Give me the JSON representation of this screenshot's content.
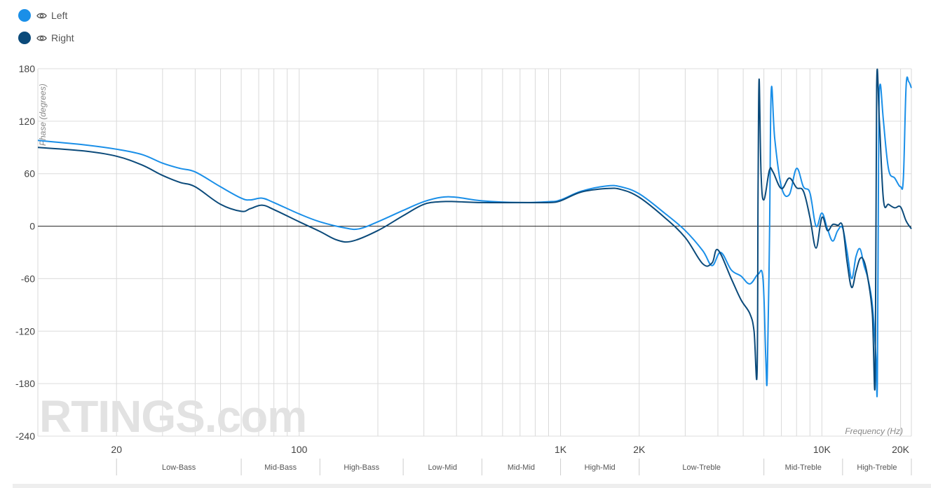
{
  "legend": {
    "items": [
      {
        "label": "Left",
        "color": "#1a8fe8",
        "icon": "eye-icon"
      },
      {
        "label": "Right",
        "color": "#0b4a7a",
        "icon": "eye-icon"
      }
    ]
  },
  "watermark": "RTINGS.com",
  "chart_data": {
    "type": "line",
    "ylabel": "Phase (degrees)",
    "xlabel": "Frequency (Hz)",
    "xscale": "log",
    "xlim": [
      10,
      22000
    ],
    "ylim": [
      -240,
      180
    ],
    "yticks": [
      180,
      120,
      60,
      0,
      -60,
      -120,
      -180,
      -240
    ],
    "xticks": [
      {
        "value": 20,
        "label": "20"
      },
      {
        "value": 100,
        "label": "100"
      },
      {
        "value": 1000,
        "label": "1K"
      },
      {
        "value": 2000,
        "label": "2K"
      },
      {
        "value": 10000,
        "label": "10K"
      },
      {
        "value": 20000,
        "label": "20K"
      }
    ],
    "grid": true,
    "bands": [
      {
        "label": "Low-Bass",
        "from": 20,
        "to": 60
      },
      {
        "label": "Mid-Bass",
        "from": 60,
        "to": 120
      },
      {
        "label": "High-Bass",
        "from": 120,
        "to": 250
      },
      {
        "label": "Low-Mid",
        "from": 250,
        "to": 500
      },
      {
        "label": "Mid-Mid",
        "from": 500,
        "to": 1000
      },
      {
        "label": "High-Mid",
        "from": 1000,
        "to": 2000
      },
      {
        "label": "Low-Treble",
        "from": 2000,
        "to": 6000
      },
      {
        "label": "Mid-Treble",
        "from": 6000,
        "to": 12000
      },
      {
        "label": "High-Treble",
        "from": 12000,
        "to": 22000
      }
    ],
    "series": [
      {
        "name": "Left",
        "color": "#1a8fe8",
        "points": [
          [
            10,
            98
          ],
          [
            15,
            93
          ],
          [
            20,
            88
          ],
          [
            25,
            82
          ],
          [
            30,
            72
          ],
          [
            35,
            66
          ],
          [
            40,
            62
          ],
          [
            50,
            45
          ],
          [
            60,
            32
          ],
          [
            65,
            30
          ],
          [
            72,
            32
          ],
          [
            80,
            27
          ],
          [
            100,
            14
          ],
          [
            120,
            5
          ],
          [
            150,
            -2
          ],
          [
            170,
            -3
          ],
          [
            200,
            5
          ],
          [
            250,
            18
          ],
          [
            300,
            28
          ],
          [
            350,
            33
          ],
          [
            400,
            33
          ],
          [
            500,
            29
          ],
          [
            700,
            27
          ],
          [
            900,
            28
          ],
          [
            1000,
            30
          ],
          [
            1200,
            40
          ],
          [
            1500,
            46
          ],
          [
            1700,
            45
          ],
          [
            2000,
            37
          ],
          [
            2500,
            15
          ],
          [
            3000,
            -5
          ],
          [
            3500,
            -28
          ],
          [
            3800,
            -45
          ],
          [
            4100,
            -30
          ],
          [
            4500,
            -50
          ],
          [
            4900,
            -57
          ],
          [
            5300,
            -66
          ],
          [
            5700,
            -55
          ],
          [
            5950,
            -60
          ],
          [
            6100,
            -150
          ],
          [
            6180,
            -173
          ],
          [
            6300,
            -20
          ],
          [
            6400,
            155
          ],
          [
            6600,
            100
          ],
          [
            7000,
            45
          ],
          [
            7500,
            36
          ],
          [
            8000,
            66
          ],
          [
            8500,
            45
          ],
          [
            9000,
            38
          ],
          [
            9500,
            0
          ],
          [
            10000,
            15
          ],
          [
            10500,
            -3
          ],
          [
            11000,
            -17
          ],
          [
            11500,
            -5
          ],
          [
            12000,
            -2
          ],
          [
            12500,
            -30
          ],
          [
            13000,
            -60
          ],
          [
            13500,
            -35
          ],
          [
            14000,
            -26
          ],
          [
            14500,
            -45
          ],
          [
            15000,
            -60
          ],
          [
            15600,
            -90
          ],
          [
            16100,
            -150
          ],
          [
            16300,
            -178
          ],
          [
            16500,
            100
          ],
          [
            16700,
            162
          ],
          [
            17200,
            120
          ],
          [
            18000,
            65
          ],
          [
            19000,
            55
          ],
          [
            20000,
            45
          ],
          [
            20500,
            55
          ],
          [
            21000,
            160
          ],
          [
            21500,
            165
          ],
          [
            22000,
            158
          ]
        ]
      },
      {
        "name": "Right",
        "color": "#0b4a7a",
        "points": [
          [
            10,
            90
          ],
          [
            15,
            86
          ],
          [
            20,
            80
          ],
          [
            25,
            70
          ],
          [
            30,
            58
          ],
          [
            35,
            50
          ],
          [
            40,
            45
          ],
          [
            50,
            25
          ],
          [
            60,
            17
          ],
          [
            65,
            20
          ],
          [
            72,
            24
          ],
          [
            80,
            19
          ],
          [
            100,
            5
          ],
          [
            120,
            -6
          ],
          [
            140,
            -16
          ],
          [
            160,
            -17
          ],
          [
            200,
            -5
          ],
          [
            250,
            12
          ],
          [
            300,
            25
          ],
          [
            350,
            28
          ],
          [
            400,
            28
          ],
          [
            500,
            27
          ],
          [
            700,
            27
          ],
          [
            900,
            27
          ],
          [
            1000,
            29
          ],
          [
            1200,
            39
          ],
          [
            1500,
            43
          ],
          [
            1700,
            42
          ],
          [
            2000,
            33
          ],
          [
            2500,
            10
          ],
          [
            3000,
            -13
          ],
          [
            3500,
            -43
          ],
          [
            3800,
            -42
          ],
          [
            4000,
            -27
          ],
          [
            4500,
            -60
          ],
          [
            4900,
            -84
          ],
          [
            5300,
            -100
          ],
          [
            5500,
            -120
          ],
          [
            5650,
            -168
          ],
          [
            5700,
            40
          ],
          [
            5750,
            168
          ],
          [
            5850,
            60
          ],
          [
            6000,
            30
          ],
          [
            6300,
            64
          ],
          [
            6500,
            62
          ],
          [
            7000,
            43
          ],
          [
            7500,
            55
          ],
          [
            8000,
            44
          ],
          [
            8500,
            40
          ],
          [
            9000,
            10
          ],
          [
            9500,
            -25
          ],
          [
            10000,
            10
          ],
          [
            10500,
            -5
          ],
          [
            11000,
            2
          ],
          [
            11500,
            1
          ],
          [
            12000,
            0
          ],
          [
            12500,
            -42
          ],
          [
            13000,
            -70
          ],
          [
            13500,
            -52
          ],
          [
            14000,
            -37
          ],
          [
            14500,
            -40
          ],
          [
            15000,
            -60
          ],
          [
            15600,
            -100
          ],
          [
            16000,
            -175
          ],
          [
            16200,
            160
          ],
          [
            16600,
            120
          ],
          [
            17200,
            30
          ],
          [
            18000,
            25
          ],
          [
            19000,
            21
          ],
          [
            20000,
            22
          ],
          [
            21000,
            6
          ],
          [
            22000,
            -3
          ]
        ]
      }
    ]
  }
}
